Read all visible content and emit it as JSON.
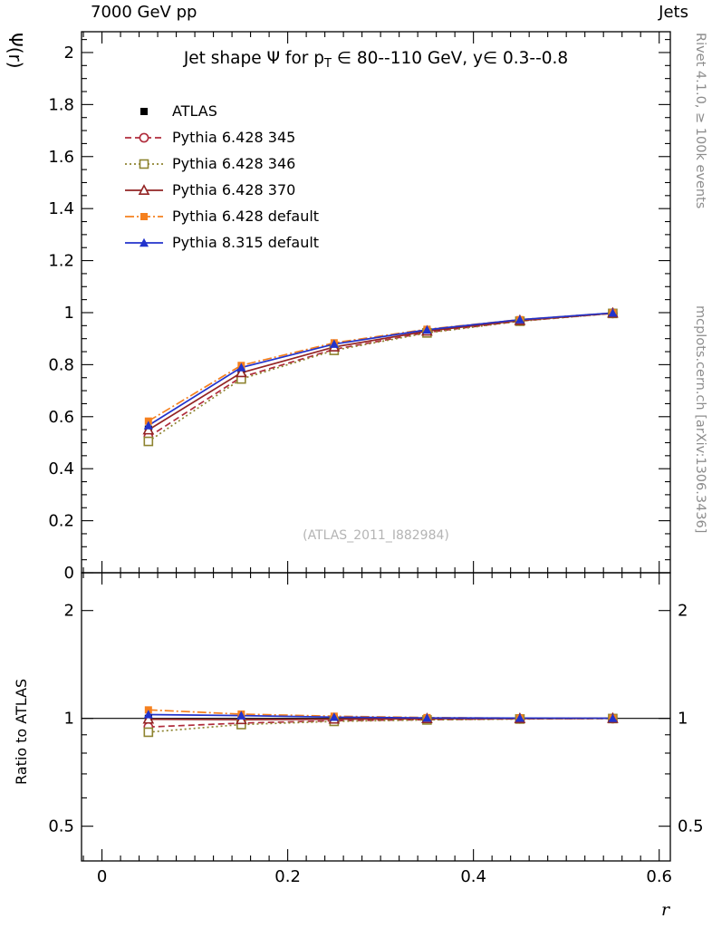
{
  "header": {
    "left": "7000 GeV pp",
    "right": "Jets"
  },
  "side_notes": {
    "top": "Rivet 4.1.0, ≥ 100k events",
    "bottom": "mcplots.cern.ch [arXiv:1306.3436]"
  },
  "watermark": "(ATLAS_2011_I882984)",
  "chart_data": {
    "type": "line",
    "title_parts": {
      "pre": "Jet shape Ψ for p",
      "sub": "T",
      "post": " ∈ 80--110 GeV, y∈ 0.3--0.8"
    },
    "xlabel": "r",
    "ylabel_main": "Ψ(r)",
    "ylabel_ratio": "Ratio to ATLAS",
    "xlim": [
      -0.022,
      0.612
    ],
    "main_ylim": [
      0,
      2.08
    ],
    "ratio_ylim": [
      0.4,
      2.55
    ],
    "ratio_yscale": "log",
    "x_ticks": [
      0,
      0.2,
      0.4,
      0.6
    ],
    "x_minor_step": 0.02,
    "main_yticks": [
      0,
      0.2,
      0.4,
      0.6,
      0.8,
      1,
      1.2,
      1.4,
      1.6,
      1.8,
      2
    ],
    "main_y_minor_step": 0.05,
    "ratio_yticks": [
      0.5,
      1,
      2
    ],
    "ratio_minor_ticks": [
      0.6,
      0.7,
      0.8,
      0.9
    ],
    "x": [
      0.05,
      0.15,
      0.25,
      0.35,
      0.45,
      0.55
    ],
    "reference": {
      "name": "ATLAS",
      "marker": "square-filled",
      "color": "#000000",
      "err": 0.012,
      "values": [
        0.552,
        0.775,
        0.872,
        0.931,
        0.971,
        0.998
      ]
    },
    "series": [
      {
        "name": "Pythia 6.428 345",
        "color": "#b02c3c",
        "line": "dashed",
        "marker": "circle-open",
        "values": [
          0.522,
          0.752,
          0.859,
          0.924,
          0.968,
          0.997
        ],
        "ratio": [
          0.946,
          0.97,
          0.985,
          0.992,
          0.997,
          0.999
        ]
      },
      {
        "name": "Pythia 6.428 346",
        "color": "#8e8430",
        "line": "dotted",
        "marker": "square-open",
        "values": [
          0.505,
          0.745,
          0.855,
          0.922,
          0.967,
          0.997
        ],
        "ratio": [
          0.915,
          0.961,
          0.981,
          0.99,
          0.996,
          0.999
        ]
      },
      {
        "name": "Pythia 6.428 370",
        "color": "#932424",
        "line": "solid",
        "marker": "triangle-open",
        "values": [
          0.549,
          0.769,
          0.868,
          0.929,
          0.97,
          0.998
        ],
        "ratio": [
          0.995,
          0.992,
          0.995,
          0.998,
          0.999,
          1.0
        ]
      },
      {
        "name": "Pythia 6.428 default",
        "color": "#f5801e",
        "line": "dashdot",
        "marker": "square-filled",
        "values": [
          0.583,
          0.797,
          0.884,
          0.936,
          0.973,
          0.999
        ],
        "ratio": [
          1.056,
          1.028,
          1.014,
          1.005,
          1.002,
          1.001
        ]
      },
      {
        "name": "Pythia 8.315 default",
        "color": "#2233cc",
        "line": "solid",
        "marker": "triangle-filled",
        "values": [
          0.566,
          0.789,
          0.879,
          0.934,
          0.973,
          0.999
        ],
        "ratio": [
          1.025,
          1.018,
          1.008,
          1.003,
          1.002,
          1.001
        ]
      }
    ]
  }
}
